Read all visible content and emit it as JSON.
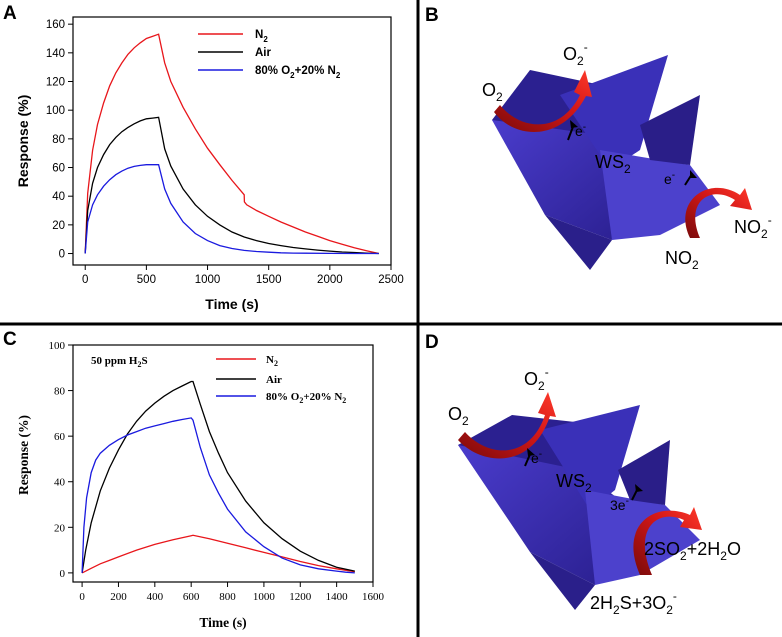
{
  "panels": {
    "a_label": "A",
    "b_label": "B",
    "c_label": "C",
    "d_label": "D"
  },
  "chart_data": [
    {
      "panel": "A",
      "type": "line",
      "title": "",
      "xlabel": "Time (s)",
      "ylabel": "Response (%)",
      "xlim": [
        -100,
        2500
      ],
      "ylim": [
        -8,
        165
      ],
      "xticks": [
        0,
        500,
        1000,
        1500,
        2000,
        2500
      ],
      "yticks": [
        0,
        20,
        40,
        60,
        80,
        100,
        120,
        140,
        160
      ],
      "legend_position": "top-right",
      "series": [
        {
          "name": "N2",
          "label_main": "N",
          "label_sub": "2",
          "color": "#e8161b",
          "x": [
            0,
            20,
            60,
            100,
            150,
            200,
            250,
            300,
            350,
            400,
            450,
            500,
            550,
            600,
            650,
            700,
            800,
            900,
            1000,
            1100,
            1200,
            1300,
            1301,
            1320,
            1400,
            1500,
            1600,
            1700,
            1800,
            1900,
            2000,
            2100,
            2200,
            2300,
            2400
          ],
          "y": [
            0,
            42,
            72,
            90,
            105,
            117,
            126,
            133,
            139,
            143.5,
            147,
            150,
            151.5,
            153,
            133,
            120,
            102,
            87,
            73.5,
            62,
            51,
            41,
            36,
            34,
            30,
            26,
            22,
            18.5,
            15,
            12,
            9,
            6.5,
            4,
            2,
            0
          ]
        },
        {
          "name": "Air",
          "label_main": "Air",
          "label_sub": "",
          "color": "#000000",
          "x": [
            0,
            20,
            60,
            100,
            150,
            200,
            250,
            300,
            350,
            400,
            450,
            500,
            550,
            600,
            650,
            700,
            800,
            900,
            1000,
            1100,
            1200,
            1300,
            1400,
            1500,
            1600,
            1700,
            1800,
            1900,
            2000,
            2100,
            2200,
            2300,
            2400
          ],
          "y": [
            0,
            30,
            49,
            60,
            69,
            76,
            81,
            85,
            88,
            90.5,
            92.5,
            94,
            94.5,
            95,
            73,
            61,
            45,
            34,
            26,
            20,
            15,
            11.5,
            9,
            7,
            5.5,
            4.2,
            3.2,
            2.4,
            1.7,
            1.1,
            0.7,
            0.3,
            0
          ]
        },
        {
          "name": "80% O2+20% N2",
          "label_main": "80% O",
          "label_sub": "2",
          "label_tail": "+20% N",
          "label_sub2": "2",
          "color": "#1a1adf",
          "x": [
            0,
            20,
            60,
            100,
            150,
            200,
            250,
            300,
            350,
            400,
            450,
            500,
            550,
            600,
            650,
            700,
            800,
            900,
            1000,
            1100,
            1200,
            1300,
            1400,
            1500,
            1600,
            1700,
            1800,
            2000,
            2200,
            2400
          ],
          "y": [
            0,
            22,
            34,
            41,
            47,
            51.5,
            55,
            57.5,
            59.5,
            60.8,
            61.5,
            62,
            62,
            62,
            45,
            35,
            22,
            14,
            9,
            5.5,
            3.5,
            2.2,
            1.4,
            0.9,
            0.5,
            0.3,
            0.2,
            0.1,
            0,
            0
          ]
        }
      ]
    },
    {
      "panel": "C",
      "type": "line",
      "title": "",
      "annotation_main": "50 ppm H",
      "annotation_sub": "2",
      "annotation_tail": "S",
      "xlabel": "Time (s)",
      "ylabel": "Response (%)",
      "xlim": [
        -50,
        1600
      ],
      "ylim": [
        -4,
        100
      ],
      "xticks": [
        0,
        200,
        400,
        600,
        800,
        1000,
        1200,
        1400,
        1600
      ],
      "yticks": [
        0,
        20,
        40,
        60,
        80,
        100
      ],
      "legend_position": "top-right",
      "series": [
        {
          "name": "N2",
          "label_main": "N",
          "label_sub": "2",
          "color": "#e8161b",
          "x": [
            0,
            50,
            100,
            150,
            200,
            300,
            400,
            500,
            600,
            610,
            700,
            800,
            900,
            1000,
            1100,
            1200,
            1300,
            1400,
            1500
          ],
          "y": [
            0,
            2,
            4,
            5.5,
            7,
            10,
            12.5,
            14.5,
            16.3,
            16.5,
            15,
            13,
            11,
            9,
            7,
            5,
            3.2,
            1.8,
            0.5
          ]
        },
        {
          "name": "Air",
          "label_main": "Air",
          "label_sub": "",
          "color": "#000000",
          "x": [
            0,
            20,
            50,
            100,
            150,
            200,
            250,
            300,
            350,
            400,
            450,
            500,
            550,
            600,
            610,
            650,
            700,
            750,
            800,
            900,
            1000,
            1100,
            1200,
            1300,
            1400,
            1500
          ],
          "y": [
            0,
            10,
            22,
            36,
            46,
            54,
            61,
            66.5,
            71,
            74.5,
            77.5,
            80,
            82,
            84,
            84,
            74,
            62,
            52.5,
            44,
            31.5,
            22,
            15,
            9.5,
            5.5,
            2.5,
            0.8
          ]
        },
        {
          "name": "80% O2+20% N2",
          "label_main": "80% O",
          "label_sub": "2",
          "label_tail": "+20% N",
          "label_sub2": "2",
          "color": "#1a1adf",
          "x": [
            0,
            10,
            25,
            50,
            75,
            100,
            150,
            200,
            250,
            300,
            350,
            400,
            450,
            500,
            550,
            600,
            610,
            650,
            700,
            750,
            800,
            900,
            1000,
            1100,
            1200,
            1300,
            1400,
            1450,
            1500
          ],
          "y": [
            0,
            20,
            33,
            44,
            49.5,
            52.5,
            56,
            58.5,
            60.5,
            62,
            63.5,
            64.5,
            65.5,
            66.5,
            67.3,
            68,
            67,
            55,
            43,
            35,
            28,
            18,
            11.5,
            6.5,
            3.5,
            1.8,
            0.8,
            0.3,
            0
          ]
        }
      ]
    }
  ],
  "scheme_b": {
    "o2_main": "O",
    "o2_sub": "2",
    "o2minus_main": "O",
    "o2minus_sub": "2",
    "o2minus_sup": "-",
    "e_main": "e",
    "e_sup": "-",
    "ws2_main": "WS",
    "ws2_sub": "2",
    "e2_main": "e",
    "e2_sup": "-",
    "no2_main": "NO",
    "no2_sub": "2",
    "no2minus_main": "NO",
    "no2minus_sub": "2",
    "no2minus_sup": "-"
  },
  "scheme_d": {
    "o2_main": "O",
    "o2_sub": "2",
    "o2minus_main": "O",
    "o2minus_sub": "2",
    "o2minus_sup": "-",
    "e_main": "e",
    "e_sup": "-",
    "ws2_main": "WS",
    "ws2_sub": "2",
    "e3_main": "3e",
    "e3_sup": "-",
    "product_a": "2SO",
    "product_a_sub": "2",
    "product_b": "+2H",
    "product_b_sub": "2",
    "product_c": "O",
    "reactant_a": "2H",
    "reactant_a_sub": "2",
    "reactant_b": "S+3O",
    "reactant_b_sub": "2",
    "reactant_sup": "-"
  },
  "colors": {
    "red": "#e8161b",
    "black": "#000000",
    "blue": "#1a1adf",
    "flake": "#3a2fb0",
    "arrow": "#c81414"
  }
}
